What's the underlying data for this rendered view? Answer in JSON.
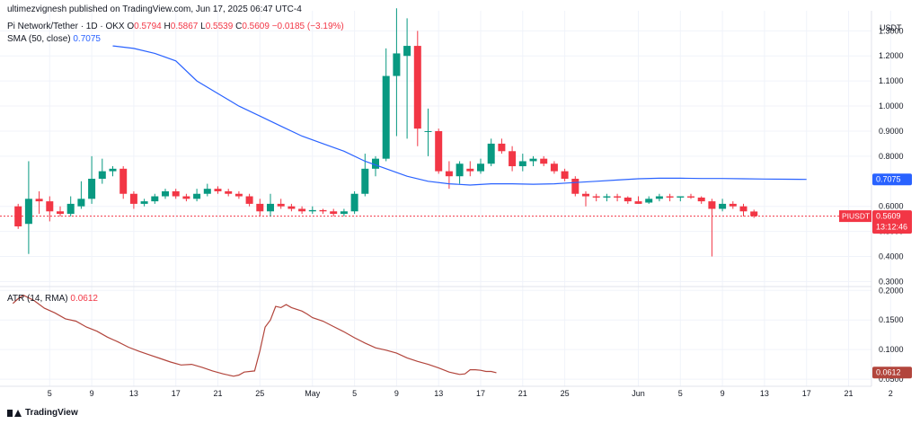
{
  "header": {
    "publisher": "ultimezvignesh published on TradingView.com, Jun 17, 2025 06:47 UTC-4",
    "symbol": "Pi Network/Tether · 1D · OKX",
    "ohlc": {
      "o_label": "O",
      "o": "0.5794",
      "h_label": "H",
      "h": "0.5867",
      "l_label": "L",
      "l": "0.5539",
      "c_label": "C",
      "c": "0.5609",
      "change": "−0.0185 (−3.19%)"
    },
    "sma_label": "SMA (50, close)",
    "sma_value": "0.7075",
    "atr_label": "ATR (14, RMA)",
    "atr_value": "0.0612",
    "currency": "USDT",
    "brand": "TradingView"
  },
  "price_tag": {
    "symbol": "PIUSDT",
    "price": "0.5609",
    "countdown": "13:12:46"
  },
  "colors": {
    "up": "#089981",
    "down": "#f23645",
    "sma": "#2962ff",
    "atr": "#b2453c",
    "grid": "#f0f3fa",
    "text": "#131722"
  },
  "chart_data": {
    "type": "candlestick",
    "price_axis": {
      "ylim": [
        0.28,
        1.38
      ],
      "ticks": [
        "1.3000",
        "1.2000",
        "1.1000",
        "1.0000",
        "0.9000",
        "0.8000",
        "0.6000",
        "0.5000",
        "0.4000",
        "0.3000"
      ],
      "tick_values": [
        1.3,
        1.2,
        1.1,
        1.0,
        0.9,
        0.8,
        0.6,
        0.5,
        0.4,
        0.3
      ]
    },
    "atr_axis": {
      "ylim": [
        0.038,
        0.205
      ],
      "ticks": [
        "0.2000",
        "0.1500",
        "0.1000",
        "0.0500"
      ],
      "tick_values": [
        0.2,
        0.15,
        0.1,
        0.05
      ]
    },
    "x_axis": {
      "ticks": [
        "5",
        "9",
        "13",
        "17",
        "21",
        "25",
        "May",
        "5",
        "9",
        "13",
        "17",
        "21",
        "25",
        "Jun",
        "5",
        "9",
        "13",
        "17",
        "21",
        "2"
      ],
      "tick_index": [
        4,
        8,
        12,
        16,
        20,
        24,
        29,
        33,
        37,
        41,
        45,
        49,
        53,
        60,
        64,
        68,
        72,
        76,
        80,
        84
      ]
    },
    "candles": [
      {
        "o": 0.6,
        "h": 0.61,
        "l": 0.51,
        "c": 0.52
      },
      {
        "o": 0.53,
        "h": 0.78,
        "l": 0.41,
        "c": 0.63
      },
      {
        "o": 0.63,
        "h": 0.66,
        "l": 0.57,
        "c": 0.62
      },
      {
        "o": 0.62,
        "h": 0.64,
        "l": 0.54,
        "c": 0.58
      },
      {
        "o": 0.58,
        "h": 0.6,
        "l": 0.56,
        "c": 0.57
      },
      {
        "o": 0.57,
        "h": 0.64,
        "l": 0.56,
        "c": 0.61
      },
      {
        "o": 0.6,
        "h": 0.7,
        "l": 0.59,
        "c": 0.63
      },
      {
        "o": 0.63,
        "h": 0.8,
        "l": 0.61,
        "c": 0.71
      },
      {
        "o": 0.71,
        "h": 0.79,
        "l": 0.69,
        "c": 0.74
      },
      {
        "o": 0.74,
        "h": 0.76,
        "l": 0.72,
        "c": 0.75
      },
      {
        "o": 0.75,
        "h": 0.76,
        "l": 0.63,
        "c": 0.65
      },
      {
        "o": 0.65,
        "h": 0.66,
        "l": 0.59,
        "c": 0.61
      },
      {
        "o": 0.61,
        "h": 0.63,
        "l": 0.6,
        "c": 0.62
      },
      {
        "o": 0.62,
        "h": 0.65,
        "l": 0.61,
        "c": 0.64
      },
      {
        "o": 0.64,
        "h": 0.67,
        "l": 0.63,
        "c": 0.66
      },
      {
        "o": 0.66,
        "h": 0.67,
        "l": 0.63,
        "c": 0.64
      },
      {
        "o": 0.64,
        "h": 0.65,
        "l": 0.62,
        "c": 0.63
      },
      {
        "o": 0.63,
        "h": 0.67,
        "l": 0.62,
        "c": 0.65
      },
      {
        "o": 0.65,
        "h": 0.69,
        "l": 0.64,
        "c": 0.67
      },
      {
        "o": 0.67,
        "h": 0.68,
        "l": 0.65,
        "c": 0.66
      },
      {
        "o": 0.66,
        "h": 0.67,
        "l": 0.64,
        "c": 0.65
      },
      {
        "o": 0.65,
        "h": 0.66,
        "l": 0.63,
        "c": 0.64
      },
      {
        "o": 0.64,
        "h": 0.65,
        "l": 0.6,
        "c": 0.61
      },
      {
        "o": 0.61,
        "h": 0.63,
        "l": 0.56,
        "c": 0.58
      },
      {
        "o": 0.58,
        "h": 0.65,
        "l": 0.56,
        "c": 0.61
      },
      {
        "o": 0.61,
        "h": 0.63,
        "l": 0.59,
        "c": 0.6
      },
      {
        "o": 0.6,
        "h": 0.61,
        "l": 0.58,
        "c": 0.59
      },
      {
        "o": 0.59,
        "h": 0.6,
        "l": 0.57,
        "c": 0.58
      },
      {
        "o": 0.58,
        "h": 0.6,
        "l": 0.57,
        "c": 0.585
      },
      {
        "o": 0.585,
        "h": 0.59,
        "l": 0.57,
        "c": 0.58
      },
      {
        "o": 0.58,
        "h": 0.59,
        "l": 0.56,
        "c": 0.57
      },
      {
        "o": 0.57,
        "h": 0.59,
        "l": 0.56,
        "c": 0.58
      },
      {
        "o": 0.58,
        "h": 0.66,
        "l": 0.57,
        "c": 0.65
      },
      {
        "o": 0.65,
        "h": 0.81,
        "l": 0.64,
        "c": 0.75
      },
      {
        "o": 0.75,
        "h": 0.8,
        "l": 0.72,
        "c": 0.79
      },
      {
        "o": 0.79,
        "h": 1.23,
        "l": 0.78,
        "c": 1.12
      },
      {
        "o": 1.12,
        "h": 1.39,
        "l": 0.88,
        "c": 1.21
      },
      {
        "o": 1.2,
        "h": 1.35,
        "l": 0.87,
        "c": 1.24
      },
      {
        "o": 1.24,
        "h": 1.3,
        "l": 0.84,
        "c": 0.91
      },
      {
        "o": 0.9,
        "h": 0.99,
        "l": 0.8,
        "c": 0.9
      },
      {
        "o": 0.9,
        "h": 0.91,
        "l": 0.73,
        "c": 0.74
      },
      {
        "o": 0.74,
        "h": 0.78,
        "l": 0.67,
        "c": 0.72
      },
      {
        "o": 0.72,
        "h": 0.78,
        "l": 0.69,
        "c": 0.77
      },
      {
        "o": 0.75,
        "h": 0.78,
        "l": 0.72,
        "c": 0.74
      },
      {
        "o": 0.74,
        "h": 0.79,
        "l": 0.73,
        "c": 0.77
      },
      {
        "o": 0.77,
        "h": 0.87,
        "l": 0.76,
        "c": 0.85
      },
      {
        "o": 0.85,
        "h": 0.87,
        "l": 0.81,
        "c": 0.82
      },
      {
        "o": 0.82,
        "h": 0.84,
        "l": 0.74,
        "c": 0.76
      },
      {
        "o": 0.76,
        "h": 0.81,
        "l": 0.74,
        "c": 0.78
      },
      {
        "o": 0.78,
        "h": 0.8,
        "l": 0.76,
        "c": 0.79
      },
      {
        "o": 0.79,
        "h": 0.8,
        "l": 0.76,
        "c": 0.77
      },
      {
        "o": 0.77,
        "h": 0.78,
        "l": 0.73,
        "c": 0.74
      },
      {
        "o": 0.74,
        "h": 0.75,
        "l": 0.7,
        "c": 0.71
      },
      {
        "o": 0.71,
        "h": 0.72,
        "l": 0.64,
        "c": 0.65
      },
      {
        "o": 0.65,
        "h": 0.66,
        "l": 0.6,
        "c": 0.64
      },
      {
        "o": 0.64,
        "h": 0.65,
        "l": 0.62,
        "c": 0.635
      },
      {
        "o": 0.635,
        "h": 0.65,
        "l": 0.62,
        "c": 0.64
      },
      {
        "o": 0.64,
        "h": 0.65,
        "l": 0.62,
        "c": 0.635
      },
      {
        "o": 0.635,
        "h": 0.64,
        "l": 0.61,
        "c": 0.62
      },
      {
        "o": 0.62,
        "h": 0.64,
        "l": 0.61,
        "c": 0.61
      },
      {
        "o": 0.615,
        "h": 0.64,
        "l": 0.61,
        "c": 0.63
      },
      {
        "o": 0.63,
        "h": 0.65,
        "l": 0.62,
        "c": 0.64
      },
      {
        "o": 0.64,
        "h": 0.65,
        "l": 0.62,
        "c": 0.635
      },
      {
        "o": 0.635,
        "h": 0.64,
        "l": 0.62,
        "c": 0.64
      },
      {
        "o": 0.64,
        "h": 0.65,
        "l": 0.63,
        "c": 0.635
      },
      {
        "o": 0.635,
        "h": 0.64,
        "l": 0.61,
        "c": 0.62
      },
      {
        "o": 0.62,
        "h": 0.63,
        "l": 0.4,
        "c": 0.59
      },
      {
        "o": 0.59,
        "h": 0.63,
        "l": 0.58,
        "c": 0.61
      },
      {
        "o": 0.61,
        "h": 0.62,
        "l": 0.59,
        "c": 0.6
      },
      {
        "o": 0.6,
        "h": 0.61,
        "l": 0.56,
        "c": 0.58
      },
      {
        "o": 0.5794,
        "h": 0.5867,
        "l": 0.5539,
        "c": 0.5609
      }
    ],
    "candle_start_index": 1,
    "sma": [
      {
        "i": 10,
        "v": 1.24
      },
      {
        "i": 12,
        "v": 1.23
      },
      {
        "i": 14,
        "v": 1.21
      },
      {
        "i": 16,
        "v": 1.18
      },
      {
        "i": 18,
        "v": 1.1
      },
      {
        "i": 20,
        "v": 1.05
      },
      {
        "i": 22,
        "v": 1.0
      },
      {
        "i": 24,
        "v": 0.96
      },
      {
        "i": 26,
        "v": 0.92
      },
      {
        "i": 28,
        "v": 0.88
      },
      {
        "i": 30,
        "v": 0.85
      },
      {
        "i": 32,
        "v": 0.82
      },
      {
        "i": 34,
        "v": 0.78
      },
      {
        "i": 36,
        "v": 0.75
      },
      {
        "i": 38,
        "v": 0.72
      },
      {
        "i": 40,
        "v": 0.7
      },
      {
        "i": 42,
        "v": 0.69
      },
      {
        "i": 44,
        "v": 0.685
      },
      {
        "i": 46,
        "v": 0.69
      },
      {
        "i": 48,
        "v": 0.69
      },
      {
        "i": 50,
        "v": 0.688
      },
      {
        "i": 52,
        "v": 0.69
      },
      {
        "i": 54,
        "v": 0.695
      },
      {
        "i": 56,
        "v": 0.7
      },
      {
        "i": 58,
        "v": 0.705
      },
      {
        "i": 60,
        "v": 0.71
      },
      {
        "i": 62,
        "v": 0.712
      },
      {
        "i": 64,
        "v": 0.712
      },
      {
        "i": 66,
        "v": 0.711
      },
      {
        "i": 68,
        "v": 0.711
      },
      {
        "i": 70,
        "v": 0.71
      },
      {
        "i": 72,
        "v": 0.709
      },
      {
        "i": 74,
        "v": 0.708
      },
      {
        "i": 76,
        "v": 0.7075
      }
    ],
    "atr": [
      {
        "i": 1,
        "v": 0.178
      },
      {
        "i": 2,
        "v": 0.186
      },
      {
        "i": 3,
        "v": 0.192
      },
      {
        "i": 5,
        "v": 0.183
      },
      {
        "i": 7,
        "v": 0.17
      },
      {
        "i": 9,
        "v": 0.162
      },
      {
        "i": 11,
        "v": 0.152
      },
      {
        "i": 13,
        "v": 0.148
      },
      {
        "i": 15,
        "v": 0.138
      },
      {
        "i": 17,
        "v": 0.131
      },
      {
        "i": 19,
        "v": 0.121
      },
      {
        "i": 21,
        "v": 0.113
      },
      {
        "i": 23,
        "v": 0.104
      },
      {
        "i": 25,
        "v": 0.097
      },
      {
        "i": 27,
        "v": 0.091
      },
      {
        "i": 29,
        "v": 0.085
      },
      {
        "i": 31,
        "v": 0.079
      },
      {
        "i": 33,
        "v": 0.074
      },
      {
        "i": 35,
        "v": 0.075
      },
      {
        "i": 37,
        "v": 0.07
      },
      {
        "i": 39,
        "v": 0.064
      },
      {
        "i": 41,
        "v": 0.059
      },
      {
        "i": 43,
        "v": 0.055
      },
      {
        "i": 44,
        "v": 0.057
      },
      {
        "i": 45,
        "v": 0.062
      },
      {
        "i": 47,
        "v": 0.064
      },
      {
        "i": 48,
        "v": 0.098
      },
      {
        "i": 49,
        "v": 0.138
      },
      {
        "i": 50,
        "v": 0.15
      },
      {
        "i": 51,
        "v": 0.173
      },
      {
        "i": 52,
        "v": 0.171
      },
      {
        "i": 53,
        "v": 0.176
      },
      {
        "i": 54,
        "v": 0.171
      },
      {
        "i": 56,
        "v": 0.165
      },
      {
        "i": 57,
        "v": 0.16
      },
      {
        "i": 58,
        "v": 0.154
      },
      {
        "i": 60,
        "v": 0.148
      },
      {
        "i": 62,
        "v": 0.139
      },
      {
        "i": 64,
        "v": 0.13
      },
      {
        "i": 66,
        "v": 0.12
      },
      {
        "i": 68,
        "v": 0.111
      },
      {
        "i": 70,
        "v": 0.103
      },
      {
        "i": 72,
        "v": 0.099
      },
      {
        "i": 74,
        "v": 0.094
      },
      {
        "i": 76,
        "v": 0.086
      },
      {
        "i": 78,
        "v": 0.08
      },
      {
        "i": 80,
        "v": 0.075
      },
      {
        "i": 82,
        "v": 0.069
      },
      {
        "i": 84,
        "v": 0.062
      },
      {
        "i": 86,
        "v": 0.058
      },
      {
        "i": 87,
        "v": 0.059
      },
      {
        "i": 88,
        "v": 0.066
      },
      {
        "i": 89,
        "v": 0.066
      },
      {
        "i": 90,
        "v": 0.065
      },
      {
        "i": 91,
        "v": 0.063
      },
      {
        "i": 92,
        "v": 0.063
      },
      {
        "i": 93,
        "v": 0.061
      }
    ]
  }
}
